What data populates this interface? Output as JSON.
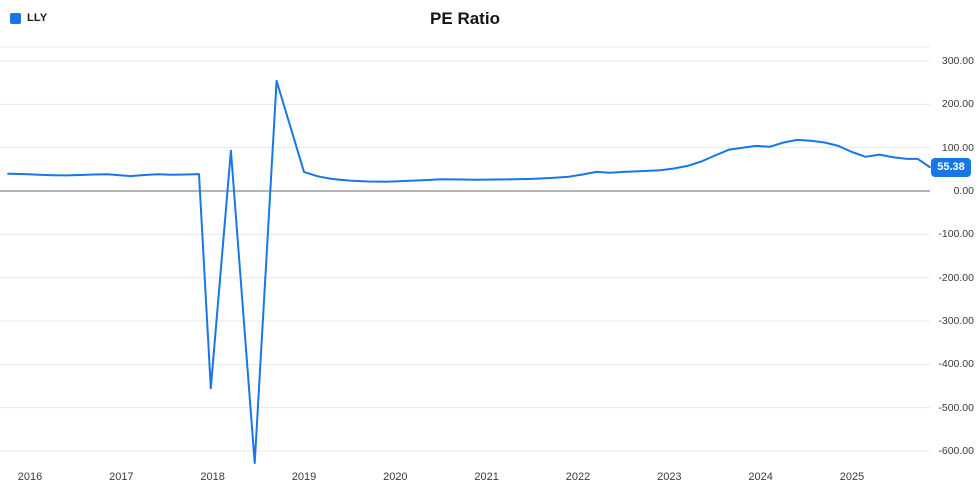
{
  "title": "PE Ratio",
  "legend": {
    "label": "LLY"
  },
  "chart_data": {
    "type": "line",
    "title": "PE Ratio",
    "series": [
      {
        "name": "LLY",
        "points": [
          [
            2015.76,
            40
          ],
          [
            2015.95,
            39
          ],
          [
            2016.1,
            37.5
          ],
          [
            2016.25,
            36.5
          ],
          [
            2016.4,
            36
          ],
          [
            2016.55,
            37
          ],
          [
            2016.7,
            38
          ],
          [
            2016.85,
            38.5
          ],
          [
            2017.0,
            36
          ],
          [
            2017.1,
            34.5
          ],
          [
            2017.25,
            37
          ],
          [
            2017.4,
            38.5
          ],
          [
            2017.55,
            37.5
          ],
          [
            2017.7,
            38
          ],
          [
            2017.85,
            39
          ],
          [
            2017.98,
            -455
          ],
          [
            2018.2,
            93
          ],
          [
            2018.46,
            -628
          ],
          [
            2018.7,
            254
          ],
          [
            2019.0,
            44
          ],
          [
            2019.15,
            34
          ],
          [
            2019.3,
            28
          ],
          [
            2019.5,
            24
          ],
          [
            2019.7,
            22
          ],
          [
            2019.9,
            21.5
          ],
          [
            2020.1,
            23
          ],
          [
            2020.3,
            25
          ],
          [
            2020.5,
            27
          ],
          [
            2020.7,
            26.5
          ],
          [
            2020.9,
            26
          ],
          [
            2021.1,
            26.5
          ],
          [
            2021.3,
            27
          ],
          [
            2021.5,
            28
          ],
          [
            2021.7,
            30
          ],
          [
            2021.9,
            33
          ],
          [
            2022.05,
            38
          ],
          [
            2022.2,
            44
          ],
          [
            2022.35,
            42
          ],
          [
            2022.5,
            44
          ],
          [
            2022.7,
            46
          ],
          [
            2022.9,
            48
          ],
          [
            2023.05,
            52
          ],
          [
            2023.2,
            58
          ],
          [
            2023.35,
            68
          ],
          [
            2023.5,
            82
          ],
          [
            2023.65,
            95
          ],
          [
            2023.8,
            100
          ],
          [
            2023.95,
            104
          ],
          [
            2024.1,
            102
          ],
          [
            2024.25,
            112
          ],
          [
            2024.4,
            118
          ],
          [
            2024.55,
            116
          ],
          [
            2024.7,
            112
          ],
          [
            2024.85,
            104
          ],
          [
            2025.0,
            90
          ],
          [
            2025.15,
            79
          ],
          [
            2025.3,
            84
          ],
          [
            2025.45,
            78
          ],
          [
            2025.6,
            74
          ],
          [
            2025.72,
            74
          ],
          [
            2025.85,
            55.38
          ]
        ]
      }
    ],
    "x_ticks": [
      2016,
      2017,
      2018,
      2019,
      2020,
      2021,
      2022,
      2023,
      2024,
      2025
    ],
    "y_ticks": [
      {
        "value": 300,
        "label": "300.00"
      },
      {
        "value": 200,
        "label": "200.00"
      },
      {
        "value": 100,
        "label": "100.00"
      },
      {
        "value": 0,
        "label": "0.00"
      },
      {
        "value": -100,
        "label": "-100.00"
      },
      {
        "value": -200,
        "label": "-200.00"
      },
      {
        "value": -300,
        "label": "-300.00"
      },
      {
        "value": -400,
        "label": "-400.00"
      },
      {
        "value": -500,
        "label": "-500.00"
      },
      {
        "value": -600,
        "label": "-600.00"
      }
    ],
    "xlim": [
      2015.75,
      2025.9
    ],
    "ylim": [
      -650,
      320
    ],
    "grid": true,
    "legend_position": "top-left",
    "y_axis_position": "right",
    "last_value": 55.38,
    "last_value_label": "55.38",
    "line_color": "#1777e8",
    "grid_color": "#e8e8e8",
    "zero_line_color": "#9b9b9b"
  }
}
